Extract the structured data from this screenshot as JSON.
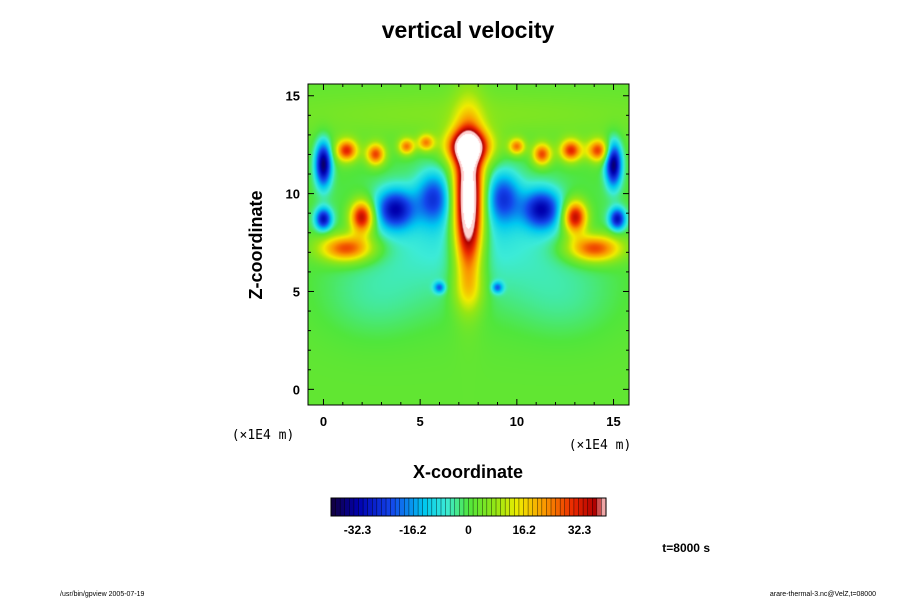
{
  "chart_data": {
    "type": "heatmap",
    "title": "vertical velocity",
    "xlabel": "X-coordinate",
    "ylabel": "Z-coordinate",
    "x_unit": "(×1E4 m)",
    "y_unit": "(×1E4 m)",
    "xlim": [
      -0.8,
      15.8
    ],
    "ylim": [
      -0.8,
      15.6
    ],
    "x_ticks": [
      "0",
      "5",
      "10",
      "15"
    ],
    "y_ticks": [
      "0",
      "5",
      "10",
      "15"
    ],
    "colorbar": {
      "range": [
        -40,
        40
      ],
      "tick_labels": [
        "-32.3",
        "-16.2",
        "0",
        "16.2",
        "32.3"
      ],
      "tick_values": [
        -32.3,
        -16.2,
        0,
        16.2,
        32.3
      ]
    },
    "time_label": "t=8000 s",
    "features": [
      {
        "x": 7.5,
        "z": 9.5,
        "sx": 0.55,
        "sz": 2.6,
        "w": 60
      },
      {
        "x": 7.5,
        "z": 12.4,
        "sx": 0.85,
        "sz": 0.6,
        "w": 35
      },
      {
        "x": 1.2,
        "z": 7.2,
        "sx": 1.0,
        "sz": 0.5,
        "w": 30
      },
      {
        "x": 14.0,
        "z": 7.2,
        "sx": 1.0,
        "sz": 0.5,
        "w": 30
      },
      {
        "x": 2.0,
        "z": 8.8,
        "sx": 0.45,
        "sz": 0.6,
        "w": 38
      },
      {
        "x": 13.0,
        "z": 8.8,
        "sx": 0.45,
        "sz": 0.6,
        "w": 38
      },
      {
        "x": 1.2,
        "z": 12.2,
        "sx": 0.4,
        "sz": 0.4,
        "w": 30
      },
      {
        "x": 2.7,
        "z": 12.0,
        "sx": 0.35,
        "sz": 0.4,
        "w": 28
      },
      {
        "x": 4.3,
        "z": 12.4,
        "sx": 0.3,
        "sz": 0.3,
        "w": 24
      },
      {
        "x": 5.3,
        "z": 12.6,
        "sx": 0.3,
        "sz": 0.3,
        "w": 22
      },
      {
        "x": 10.0,
        "z": 12.4,
        "sx": 0.3,
        "sz": 0.3,
        "w": 24
      },
      {
        "x": 11.3,
        "z": 12.0,
        "sx": 0.35,
        "sz": 0.4,
        "w": 28
      },
      {
        "x": 12.8,
        "z": 12.2,
        "sx": 0.4,
        "sz": 0.4,
        "w": 30
      },
      {
        "x": 14.2,
        "z": 12.2,
        "sx": 0.4,
        "sz": 0.4,
        "w": 28
      },
      {
        "x": 0.0,
        "z": 11.5,
        "sx": 0.3,
        "sz": 0.8,
        "w": -38
      },
      {
        "x": 15.0,
        "z": 11.5,
        "sx": 0.3,
        "sz": 0.8,
        "w": -38
      },
      {
        "x": 3.7,
        "z": 9.2,
        "sx": 0.7,
        "sz": 0.7,
        "w": -28
      },
      {
        "x": 11.3,
        "z": 9.2,
        "sx": 0.7,
        "sz": 0.7,
        "w": -28
      },
      {
        "x": 5.7,
        "z": 9.8,
        "sx": 0.6,
        "sz": 0.9,
        "w": -20
      },
      {
        "x": 9.3,
        "z": 9.8,
        "sx": 0.6,
        "sz": 0.9,
        "w": -20
      },
      {
        "x": 0.0,
        "z": 8.7,
        "sx": 0.3,
        "sz": 0.4,
        "w": -30
      },
      {
        "x": 15.2,
        "z": 8.7,
        "sx": 0.3,
        "sz": 0.4,
        "w": -30
      },
      {
        "x": 7.5,
        "z": 8.0,
        "sx": 4.5,
        "sz": 2.5,
        "w": -10
      },
      {
        "x": 6.0,
        "z": 5.2,
        "sx": 0.2,
        "sz": 0.2,
        "w": -18
      },
      {
        "x": 9.0,
        "z": 5.2,
        "sx": 0.2,
        "sz": 0.2,
        "w": -18
      },
      {
        "x": 7.5,
        "z": 5.0,
        "sx": 0.6,
        "sz": 0.8,
        "w": 8
      },
      {
        "x": 7.5,
        "z": 14.0,
        "sx": 7.0,
        "sz": 0.8,
        "w": 4
      },
      {
        "x": 2.5,
        "z": 4.5,
        "sx": 2.0,
        "sz": 1.5,
        "w": -4
      },
      {
        "x": 12.5,
        "z": 4.5,
        "sx": 2.0,
        "sz": 1.5,
        "w": -4
      }
    ]
  },
  "footer": {
    "left": "/usr/bin/gpview 2005-07-19",
    "right": "arare-thermal-3.nc@VelZ,t=08000"
  }
}
